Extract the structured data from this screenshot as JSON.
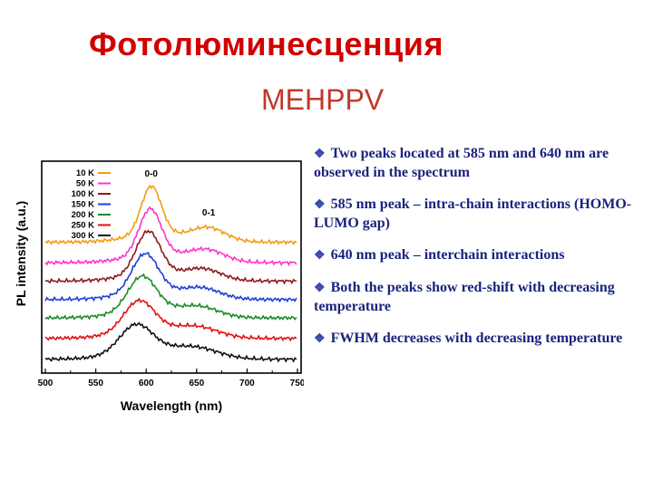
{
  "slide": {
    "title": "Фотолюминесценция",
    "subtitle": "MEHPPV"
  },
  "bullets": [
    "Two peaks located at 585 nm and 640 nm  are observed in the spectrum",
    "585 nm peak – intra-chain interactions (HOMO-LUMO gap)",
    "640 nm peak – interchain interactions",
    "Both the peaks show red-shift with decreasing temperature",
    "FWHM decreases with decreasing temperature"
  ],
  "bullet_marker": "❖",
  "chart_data": {
    "type": "line",
    "xlabel": "Wavelength (nm)",
    "ylabel": "PL intensity (a.u.)",
    "xlim": [
      500,
      750
    ],
    "xticks": [
      "500",
      "550",
      "600",
      "650",
      "700",
      "750"
    ],
    "peak_labels": [
      {
        "text": "0-0",
        "x": 605
      },
      {
        "text": "0-1",
        "x": 662
      }
    ],
    "x": [
      500,
      525,
      550,
      565,
      575,
      580,
      585,
      590,
      595,
      600,
      605,
      610,
      615,
      620,
      625,
      630,
      640,
      650,
      660,
      670,
      680,
      700,
      725,
      750
    ],
    "series": [
      {
        "name": "10 K",
        "color": "#f39c12",
        "peak0": 605,
        "peak1": 662,
        "offset": 6.0,
        "amp0": 2.4,
        "amp1": 0.62,
        "w0": 10,
        "w1": 17,
        "base": 0.22
      },
      {
        "name": "50 K",
        "color": "#ff33cc",
        "peak0": 604,
        "peak1": 660,
        "offset": 5.0,
        "amp0": 2.3,
        "amp1": 0.55,
        "w0": 11,
        "w1": 18,
        "base": 0.22
      },
      {
        "name": "100 K",
        "color": "#8b1a1a",
        "peak0": 602,
        "peak1": 657,
        "offset": 4.1,
        "amp0": 2.1,
        "amp1": 0.5,
        "w0": 12,
        "w1": 18,
        "base": 0.22
      },
      {
        "name": "150 K",
        "color": "#1f3fd6",
        "peak0": 599,
        "peak1": 655,
        "offset": 3.2,
        "amp0": 1.9,
        "amp1": 0.48,
        "w0": 13,
        "w1": 19,
        "base": 0.22
      },
      {
        "name": "200 K",
        "color": "#1b8a2a",
        "peak0": 596,
        "peak1": 652,
        "offset": 2.3,
        "amp0": 1.7,
        "amp1": 0.48,
        "w0": 14,
        "w1": 20,
        "base": 0.22
      },
      {
        "name": "250 K",
        "color": "#e01010",
        "peak0": 593,
        "peak1": 650,
        "offset": 1.3,
        "amp0": 1.5,
        "amp1": 0.5,
        "w0": 15,
        "w1": 22,
        "base": 0.22
      },
      {
        "name": "300 K",
        "color": "#111111",
        "peak0": 590,
        "peak1": 648,
        "offset": 0.3,
        "amp0": 1.35,
        "amp1": 0.52,
        "w0": 16,
        "w1": 24,
        "base": 0.2
      }
    ],
    "legend": "top-left",
    "grid": false,
    "ytick_labels": false
  }
}
